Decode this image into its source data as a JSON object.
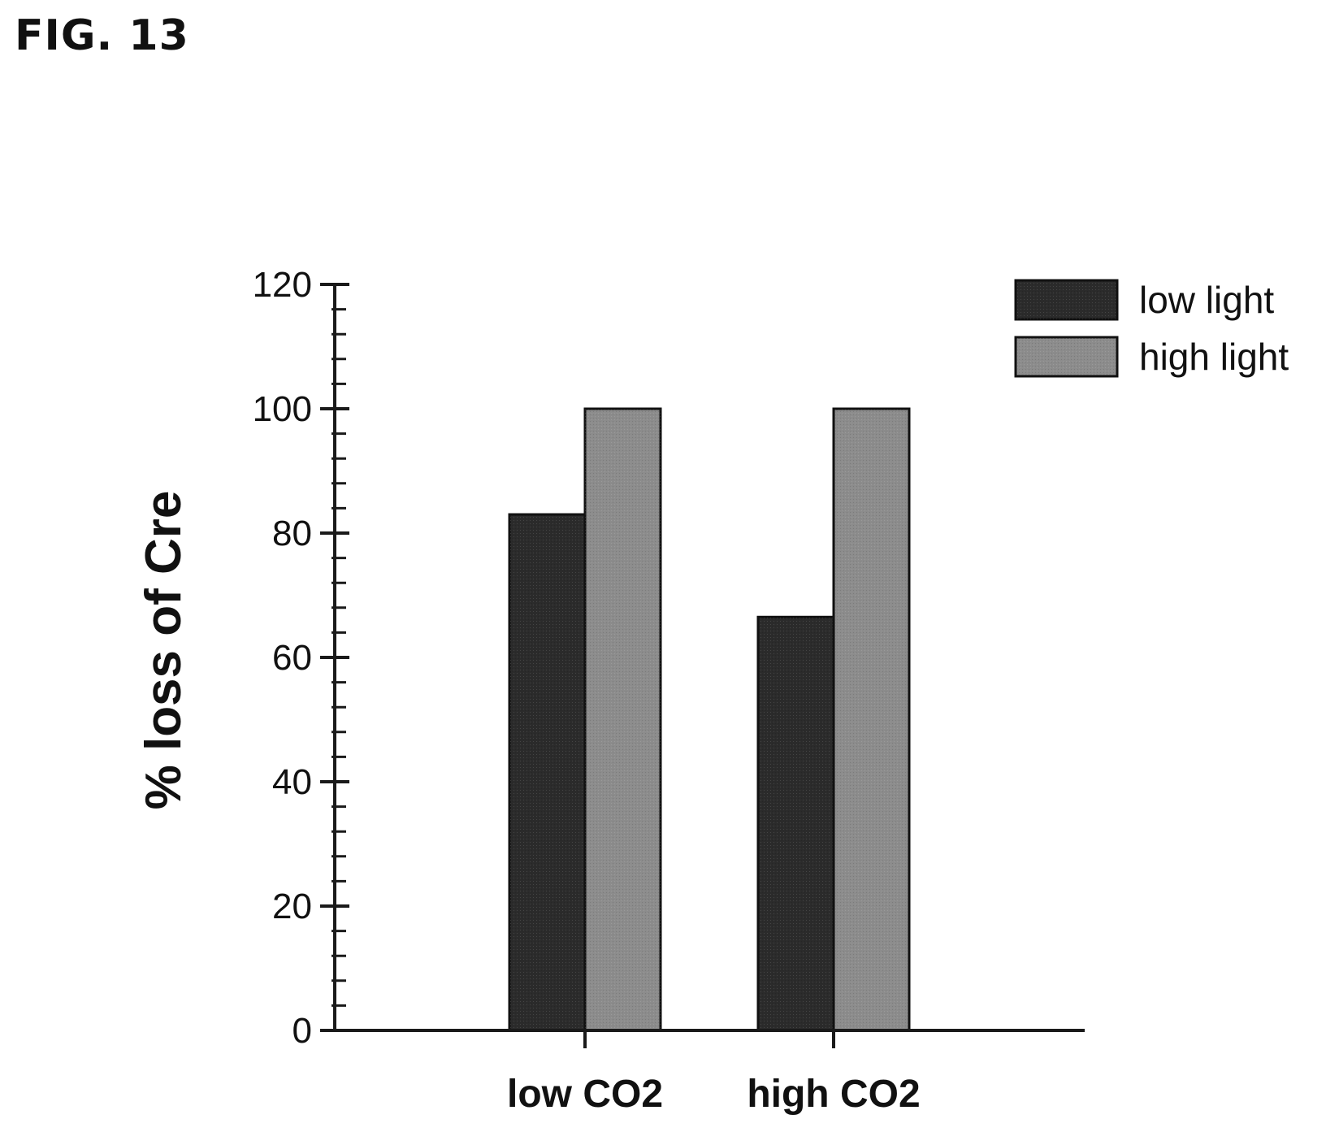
{
  "figure_label": "FIG. 13",
  "colors": {
    "axis": "#1a1a1a",
    "low_light": "#2b2b2b",
    "high_light": "#8c8c8c",
    "bar_edge": "#111111"
  },
  "chart_data": {
    "type": "bar",
    "categories": [
      "low CO2",
      "high CO2"
    ],
    "series": [
      {
        "name": "low light",
        "values": [
          83,
          66.5
        ]
      },
      {
        "name": "high light",
        "values": [
          100,
          100
        ]
      }
    ],
    "ylabel": "% loss of Cre",
    "xlabel": "",
    "ylim": [
      0,
      120
    ],
    "yticks": [
      0,
      20,
      40,
      60,
      80,
      100,
      120
    ],
    "minor_ticks_per_major": 5,
    "legend_position": "top-right",
    "grid": false
  }
}
